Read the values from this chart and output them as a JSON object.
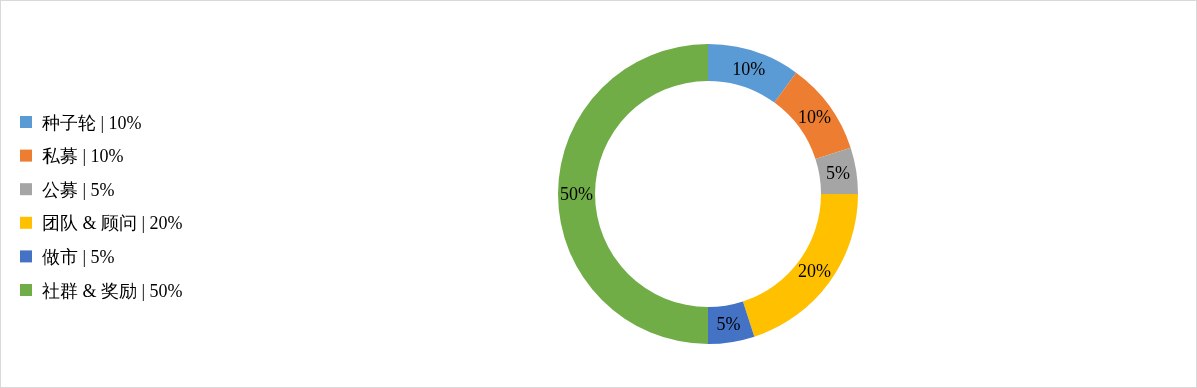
{
  "chart_data": {
    "type": "donut",
    "categories": [
      "种子轮 | 10%",
      "私募 | 10%",
      "公募 | 5%",
      "团队 & 顾问 | 20%",
      "做市 | 5%",
      "社群 & 奖励 | 50%"
    ],
    "values": [
      10,
      10,
      5,
      20,
      5,
      50
    ],
    "colors": [
      "#5b9bd5",
      "#ed7d31",
      "#a5a5a5",
      "#ffc000",
      "#4472c4",
      "#70ad47"
    ],
    "value_labels": [
      "10%",
      "10%",
      "5%",
      "20%",
      "5%",
      "50%"
    ],
    "legend": "left"
  }
}
